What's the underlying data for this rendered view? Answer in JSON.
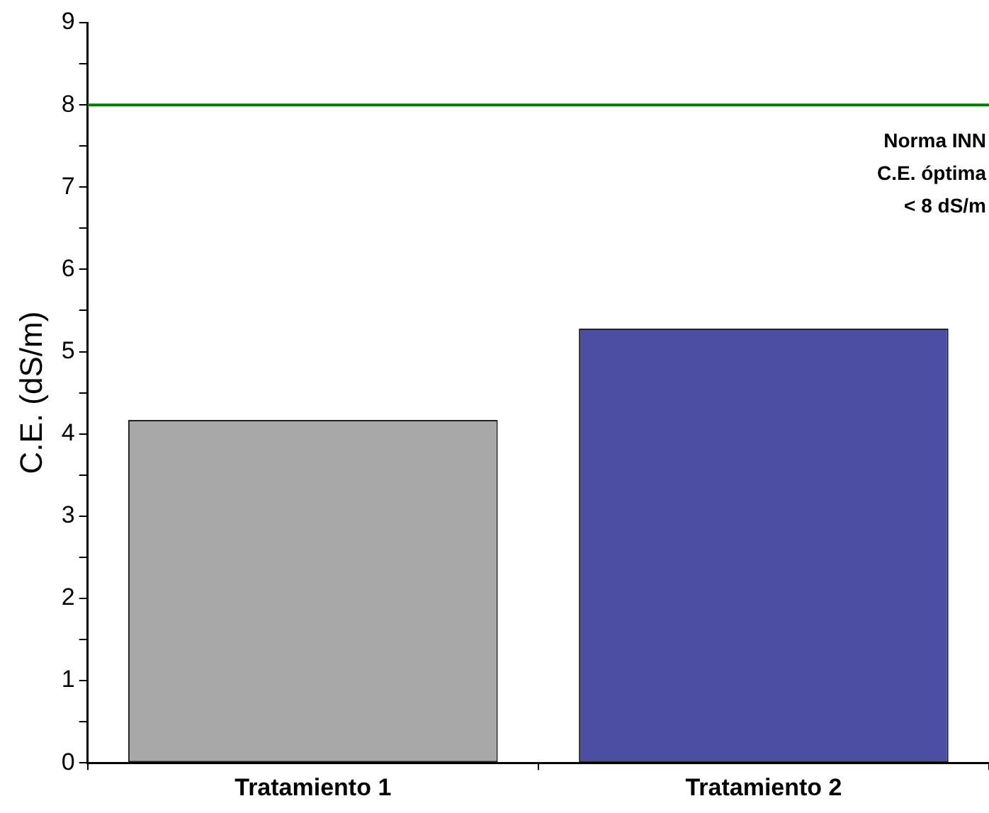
{
  "chart_data": {
    "type": "bar",
    "ylabel": "C.E. (dS/m)",
    "categories": [
      "Tratamiento 1",
      "Tratamiento 2"
    ],
    "values": [
      4.17,
      5.28
    ],
    "colors": [
      "#a8a8a8",
      "#4b4ea3"
    ],
    "ylim": [
      0,
      9
    ],
    "yticks": [
      0,
      {
        "value": 0.5,
        "label": null
      },
      1,
      {
        "value": 1.5,
        "label": null
      },
      2,
      {
        "value": 2.5,
        "label": null
      },
      3,
      {
        "value": 3.5,
        "label": null
      },
      4,
      {
        "value": 4.5,
        "label": null
      },
      5,
      {
        "value": 5.5,
        "label": null
      },
      6,
      {
        "value": 6.5,
        "label": null
      },
      7,
      {
        "value": 7.5,
        "label": null
      },
      8,
      {
        "value": 8.5,
        "label": null
      },
      9
    ],
    "ref_lines": [
      {
        "axis": "y",
        "value": 8,
        "color": "#008000"
      }
    ],
    "annotations": [
      "Norma INN",
      "C.E. óptima",
      "< 8 dS/m"
    ],
    "grid": false,
    "legend": false
  }
}
